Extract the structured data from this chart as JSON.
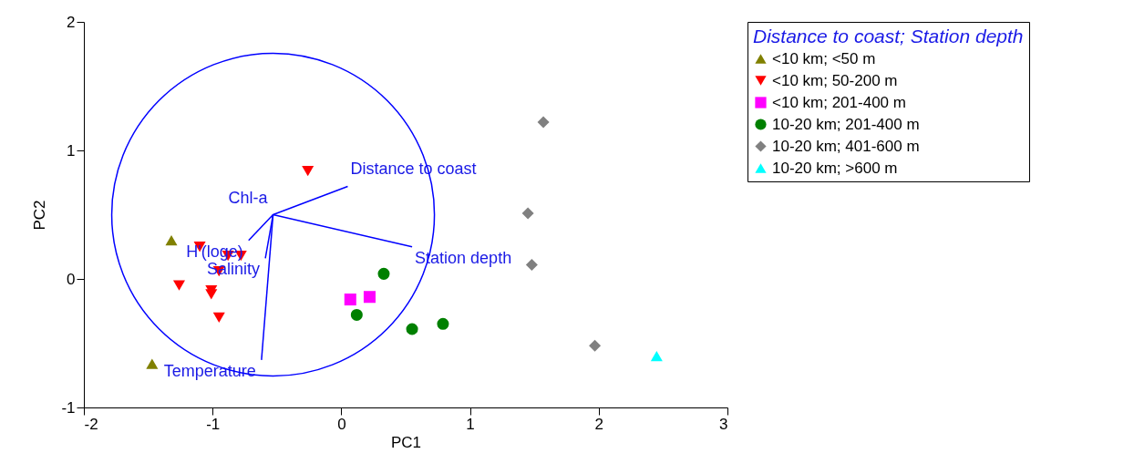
{
  "chart_data": {
    "type": "scatter",
    "xlabel": "PC1",
    "ylabel": "PC2",
    "legend_title": "Distance to coast; Station depth",
    "legend": "top right",
    "grid": false,
    "xlim": [
      -2,
      3
    ],
    "xticks": [
      -2,
      -1,
      0,
      1,
      2,
      3
    ],
    "ylim": [
      -1,
      2
    ],
    "yticks": [
      -1,
      0,
      1,
      2
    ],
    "series": [
      {
        "name": "<10 km; <50 m",
        "color": "#808000",
        "marker": "triangle",
        "x": [
          -1.32,
          -1.47
        ],
        "values": [
          0.3,
          -0.66
        ]
      },
      {
        "name": "<10 km; 50-200 m",
        "color": "#ff0000",
        "marker": "triangle-down",
        "x": [
          -0.26,
          -1.1,
          -0.88,
          -0.78,
          -0.95,
          -1.26,
          -1.01,
          -1.01,
          -0.95
        ],
        "values": [
          0.84,
          0.25,
          0.18,
          0.18,
          0.06,
          -0.05,
          -0.09,
          -0.12,
          -0.3
        ]
      },
      {
        "name": "<10 km; 201-400 m",
        "color": "#ff00ff",
        "marker": "square",
        "x": [
          0.07,
          0.22
        ],
        "values": [
          -0.16,
          -0.14
        ]
      },
      {
        "name": "10-20 km; 201-400 m",
        "color": "#008000",
        "marker": "circle",
        "x": [
          0.33,
          0.12,
          0.55,
          0.79
        ],
        "values": [
          0.04,
          -0.28,
          -0.39,
          -0.35
        ]
      },
      {
        "name": "10-20 km; 401-600 m",
        "color": "#808080",
        "marker": "diamond",
        "x": [
          1.57,
          1.45,
          1.48,
          1.97
        ],
        "values": [
          1.22,
          0.51,
          0.11,
          -0.52
        ]
      },
      {
        "name": "10-20 km; >600 m",
        "color": "#00ffff",
        "marker": "triangle",
        "x": [
          2.45
        ],
        "values": [
          -0.6
        ]
      },
      {
        "type": "line",
        "color": "#0000ff",
        "x": [
          -0.53,
          0.05
        ],
        "values": [
          0.5,
          0.72
        ]
      },
      {
        "type": "line",
        "color": "#0000ff",
        "x": [
          -0.53,
          0.55
        ],
        "values": [
          0.5,
          0.25
        ]
      },
      {
        "type": "line",
        "color": "#0000ff",
        "x": [
          -0.53,
          -0.62
        ],
        "values": [
          0.5,
          -0.63
        ]
      },
      {
        "type": "line",
        "color": "#0000ff",
        "x": [
          -0.53,
          -0.72
        ],
        "values": [
          0.5,
          0.3
        ]
      },
      {
        "type": "line",
        "color": "#0000ff",
        "x": [
          -0.53,
          -0.59
        ],
        "values": [
          0.5,
          0.16
        ]
      }
    ],
    "annotations": [
      {
        "text": "Distance to coast",
        "x": 0.05,
        "y": 0.72
      },
      {
        "text": "Chl-a",
        "x": -0.53,
        "y": 0.5
      },
      {
        "text": "Station depth",
        "x": 0.55,
        "y": 0.25
      },
      {
        "text": "H'(loge)",
        "x": -0.72,
        "y": 0.3
      },
      {
        "text": "Salinity",
        "x": -0.59,
        "y": 0.16
      },
      {
        "text": "Temperature",
        "x": -0.62,
        "y": -0.63
      }
    ]
  }
}
